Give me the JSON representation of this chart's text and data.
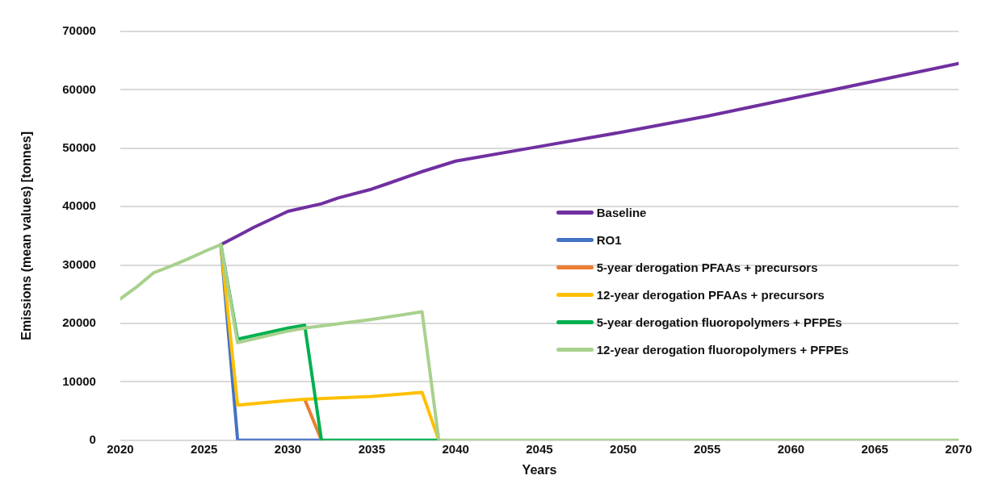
{
  "chart_data": {
    "type": "line",
    "xlabel": "Years",
    "ylabel": "Emissions (mean values) [tonnes]",
    "xlim": [
      2020,
      2070
    ],
    "xticks": [
      2020,
      2025,
      2030,
      2035,
      2040,
      2045,
      2050,
      2055,
      2060,
      2065,
      2070
    ],
    "ylim": [
      0,
      70000
    ],
    "yticks": [
      0,
      10000,
      20000,
      30000,
      40000,
      50000,
      60000,
      70000
    ],
    "grid": "y",
    "legend": "right",
    "marker": "none",
    "line_style": "solid",
    "series": [
      {
        "name": "Baseline",
        "color": "#7030a0",
        "x": [
          2026,
          2027,
          2028,
          2030,
          2032,
          2033,
          2035,
          2036,
          2038,
          2040,
          2045,
          2050,
          2055,
          2060,
          2065,
          2070
        ],
        "values": [
          33500,
          35000,
          36500,
          39200,
          40500,
          41500,
          43000,
          44000,
          46000,
          47800,
          50300,
          52800,
          55500,
          58500,
          61500,
          64500
        ]
      },
      {
        "name": "RO1",
        "color": "#4472c4",
        "x": [
          2026,
          2027,
          2032
        ],
        "values": [
          33500,
          0,
          0
        ]
      },
      {
        "name": "5-year derogation PFAAs + precursors",
        "color": "#ed7d31",
        "x": [
          2031,
          2032
        ],
        "values": [
          7000,
          0
        ]
      },
      {
        "name": "12-year derogation PFAAs + precursors",
        "color": "#ffc000",
        "x": [
          2026,
          2027,
          2030,
          2031,
          2035,
          2038,
          2039
        ],
        "values": [
          33500,
          6000,
          6800,
          7000,
          7500,
          8200,
          0
        ]
      },
      {
        "name": "5-year derogation fluoropolymers + PFPEs",
        "color": "#00b050",
        "x": [
          2026,
          2027,
          2030,
          2031,
          2032,
          2039
        ],
        "values": [
          33500,
          17300,
          19200,
          19700,
          0,
          0
        ]
      },
      {
        "name": "12-year derogation fluoropolymers + PFPEs",
        "color": "#a9d18e",
        "x": [
          2020,
          2021,
          2022,
          2023,
          2024,
          2025,
          2026,
          2027,
          2030,
          2031,
          2035,
          2038,
          2039,
          2070
        ],
        "values": [
          24200,
          26300,
          28700,
          29800,
          31000,
          32300,
          33500,
          16700,
          18700,
          19200,
          20700,
          22000,
          0,
          0
        ]
      }
    ]
  }
}
